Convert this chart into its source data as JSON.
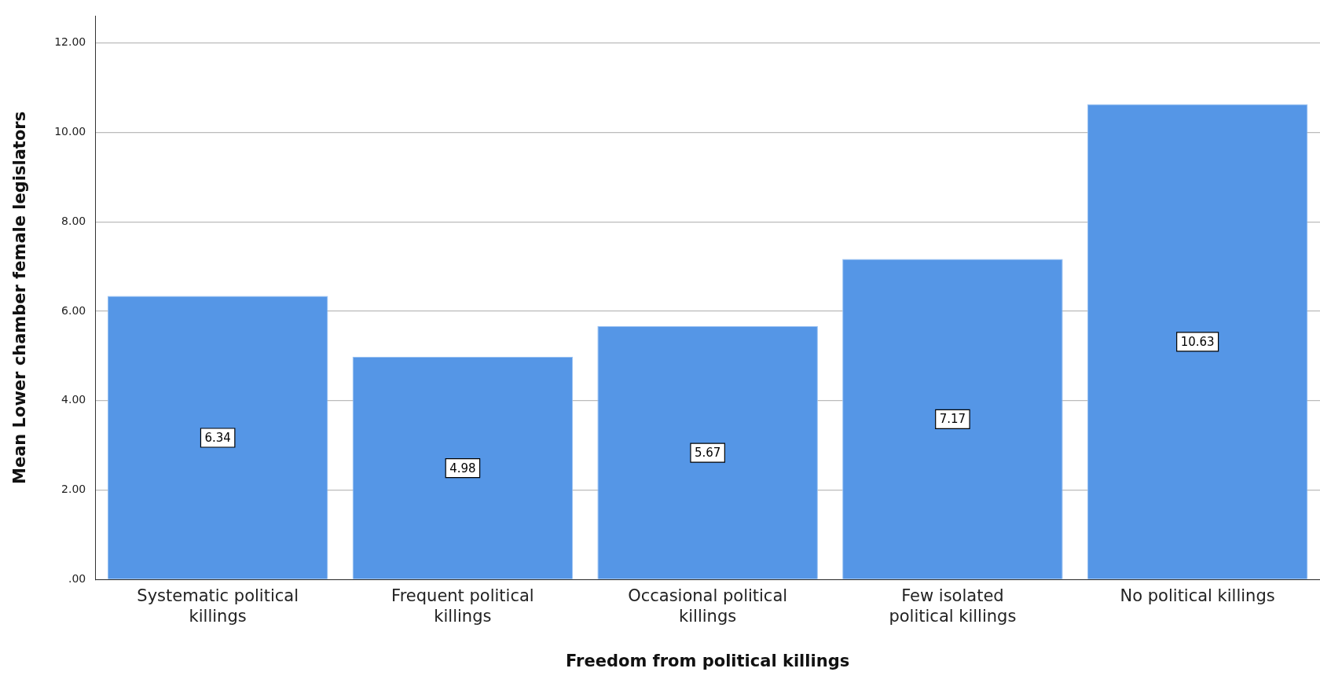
{
  "chart_data": {
    "type": "bar",
    "xlabel": "Freedom from political killings",
    "ylabel": "Mean Lower chamber female legislators",
    "categories": [
      "Systematic political killings",
      "Frequent political killings",
      "Occasional political killings",
      "Few isolated political killings",
      "No political killings"
    ],
    "values": [
      6.34,
      4.98,
      5.67,
      7.17,
      10.63
    ],
    "color": "#5596e6",
    "ylim": [
      0,
      12.6
    ],
    "yticks": [
      {
        "value": 0,
        "label": ".00"
      },
      {
        "value": 2,
        "label": "2.00"
      },
      {
        "value": 4,
        "label": "4.00"
      },
      {
        "value": 6,
        "label": "6.00"
      },
      {
        "value": 8,
        "label": "8.00"
      },
      {
        "value": 10,
        "label": "10.00"
      },
      {
        "value": 12,
        "label": "12.00"
      }
    ],
    "grid": "y",
    "legend": false,
    "data_labels": true
  }
}
